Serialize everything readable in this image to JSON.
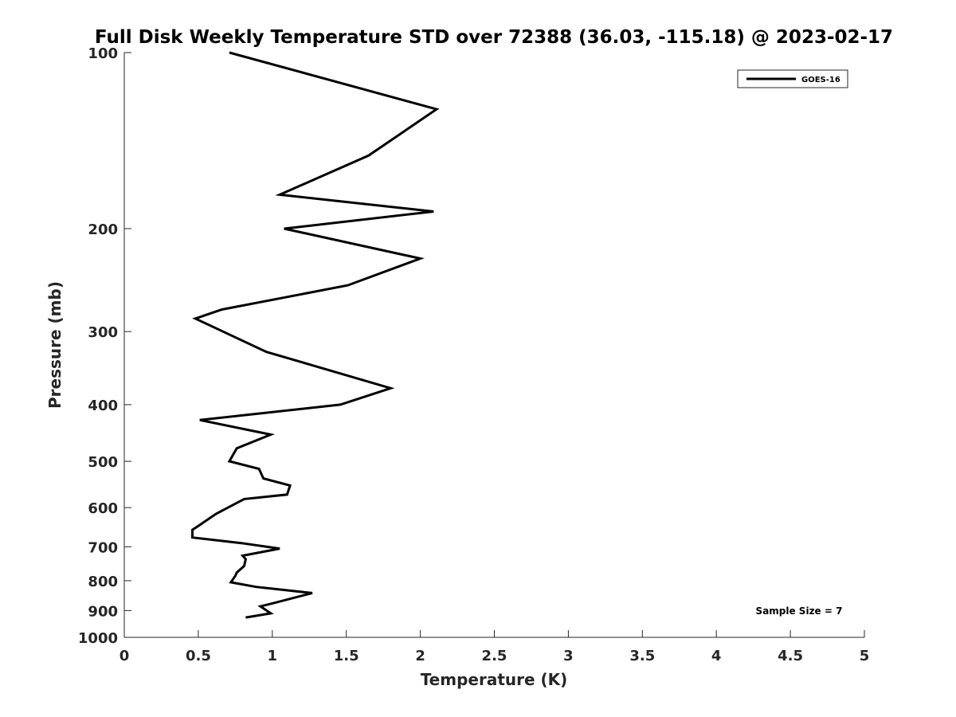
{
  "chart_data": {
    "type": "line",
    "title": "Full Disk Weekly Temperature STD over 72388 (36.03, -115.18) @ 2023-02-17",
    "xlabel": "Temperature (K)",
    "ylabel": "Pressure (mb)",
    "xlim": [
      0,
      5
    ],
    "ylim": [
      100,
      1000
    ],
    "y_scale": "log",
    "y_reversed": true,
    "xticks": [
      0,
      0.5,
      1,
      1.5,
      2,
      2.5,
      3,
      3.5,
      4,
      4.5,
      5
    ],
    "xtick_labels": [
      "0",
      "0.5",
      "1",
      "1.5",
      "2",
      "2.5",
      "3",
      "3.5",
      "4",
      "4.5",
      "5"
    ],
    "yticks": [
      100,
      200,
      300,
      400,
      500,
      600,
      700,
      800,
      900,
      1000
    ],
    "ytick_labels": [
      "100",
      "200",
      "300",
      "400",
      "500",
      "600",
      "700",
      "800",
      "900",
      "1000"
    ],
    "grid": false,
    "legend_position": "top-right",
    "line_color": "#000000",
    "series": [
      {
        "name": "GOES-16",
        "x": [
          0.71,
          2.11,
          1.65,
          1.05,
          2.09,
          1.08,
          2.0,
          1.51,
          0.66,
          0.48,
          0.96,
          1.8,
          1.46,
          0.51,
          0.99,
          0.76,
          0.71,
          0.91,
          0.94,
          1.12,
          1.1,
          0.81,
          0.62,
          0.52,
          0.46,
          0.46,
          0.79,
          1.05,
          0.8,
          0.82,
          0.81,
          0.76,
          0.75,
          0.72,
          0.89,
          1.27,
          1.0,
          0.92,
          0.99,
          0.82
        ],
        "y": [
          100,
          125,
          150,
          175,
          187,
          200,
          225,
          250,
          275,
          285,
          325,
          375,
          400,
          425,
          450,
          475,
          500,
          515,
          535,
          550,
          570,
          580,
          615,
          640,
          655,
          675,
          690,
          705,
          725,
          735,
          755,
          775,
          785,
          805,
          820,
          840,
          875,
          885,
          910,
          925
        ]
      }
    ],
    "annotations": [
      "Sample Size = 7"
    ]
  }
}
